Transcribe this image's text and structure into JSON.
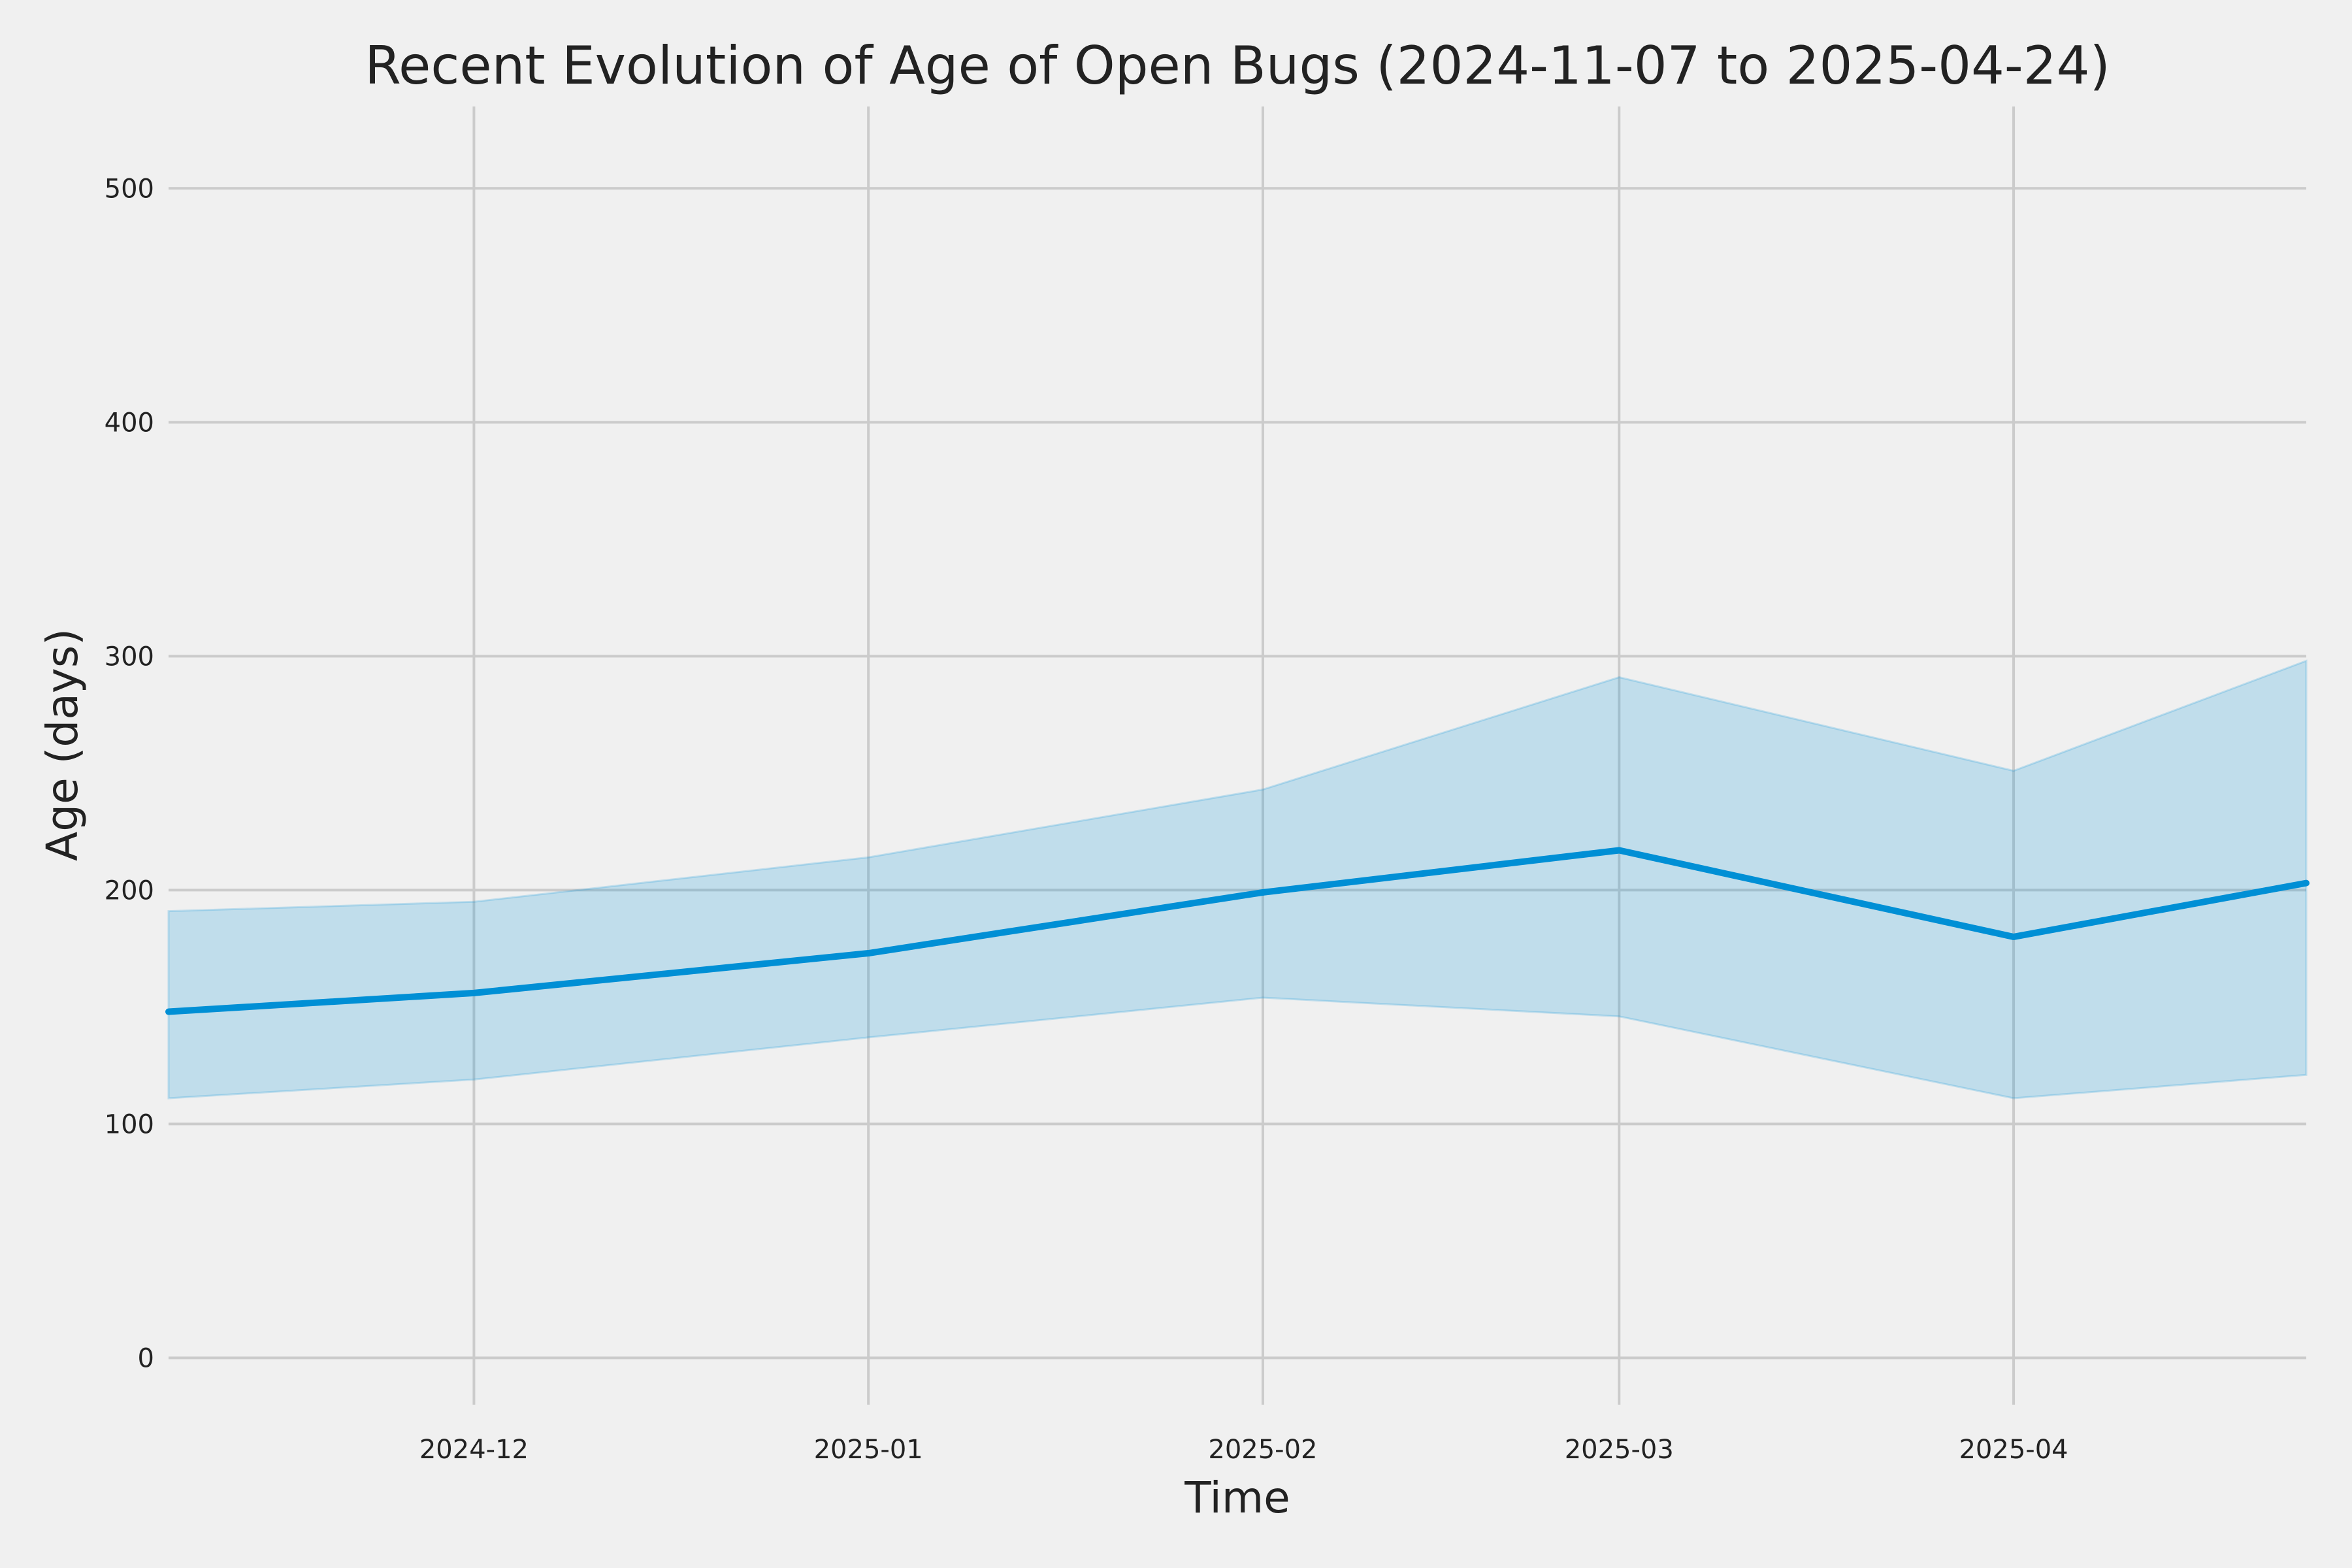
{
  "chart_data": {
    "type": "line",
    "title": "Recent Evolution of Age of Open Bugs (2024-11-07 to 2025-04-24)",
    "xlabel": "Time",
    "ylabel": "Age (days)",
    "xlim": [
      "2024-11-07",
      "2025-04-24"
    ],
    "ylim": [
      -20,
      535
    ],
    "grid": true,
    "x_ticks": [
      {
        "date": "2024-12-01",
        "label": "2024-12"
      },
      {
        "date": "2025-01-01",
        "label": "2025-01"
      },
      {
        "date": "2025-02-01",
        "label": "2025-02"
      },
      {
        "date": "2025-03-01",
        "label": "2025-03"
      },
      {
        "date": "2025-04-01",
        "label": "2025-04"
      }
    ],
    "y_ticks": [
      0,
      100,
      200,
      300,
      400,
      500
    ],
    "series": [
      {
        "x": [
          "2024-11-07",
          "2024-12-01",
          "2025-01-01",
          "2025-02-01",
          "2025-03-01",
          "2025-04-01",
          "2025-04-24"
        ],
        "y": [
          148,
          156,
          173,
          199,
          217,
          180,
          203
        ],
        "lower": [
          111,
          119,
          137,
          154,
          146,
          111,
          121
        ],
        "upper": [
          191,
          195,
          214,
          243,
          291,
          251,
          298
        ]
      }
    ],
    "colors": {
      "line": "#008fd5",
      "band": "#008fd5",
      "grid": "#cbcbcb",
      "background": "#f0f0f0",
      "text": "#222222"
    }
  }
}
